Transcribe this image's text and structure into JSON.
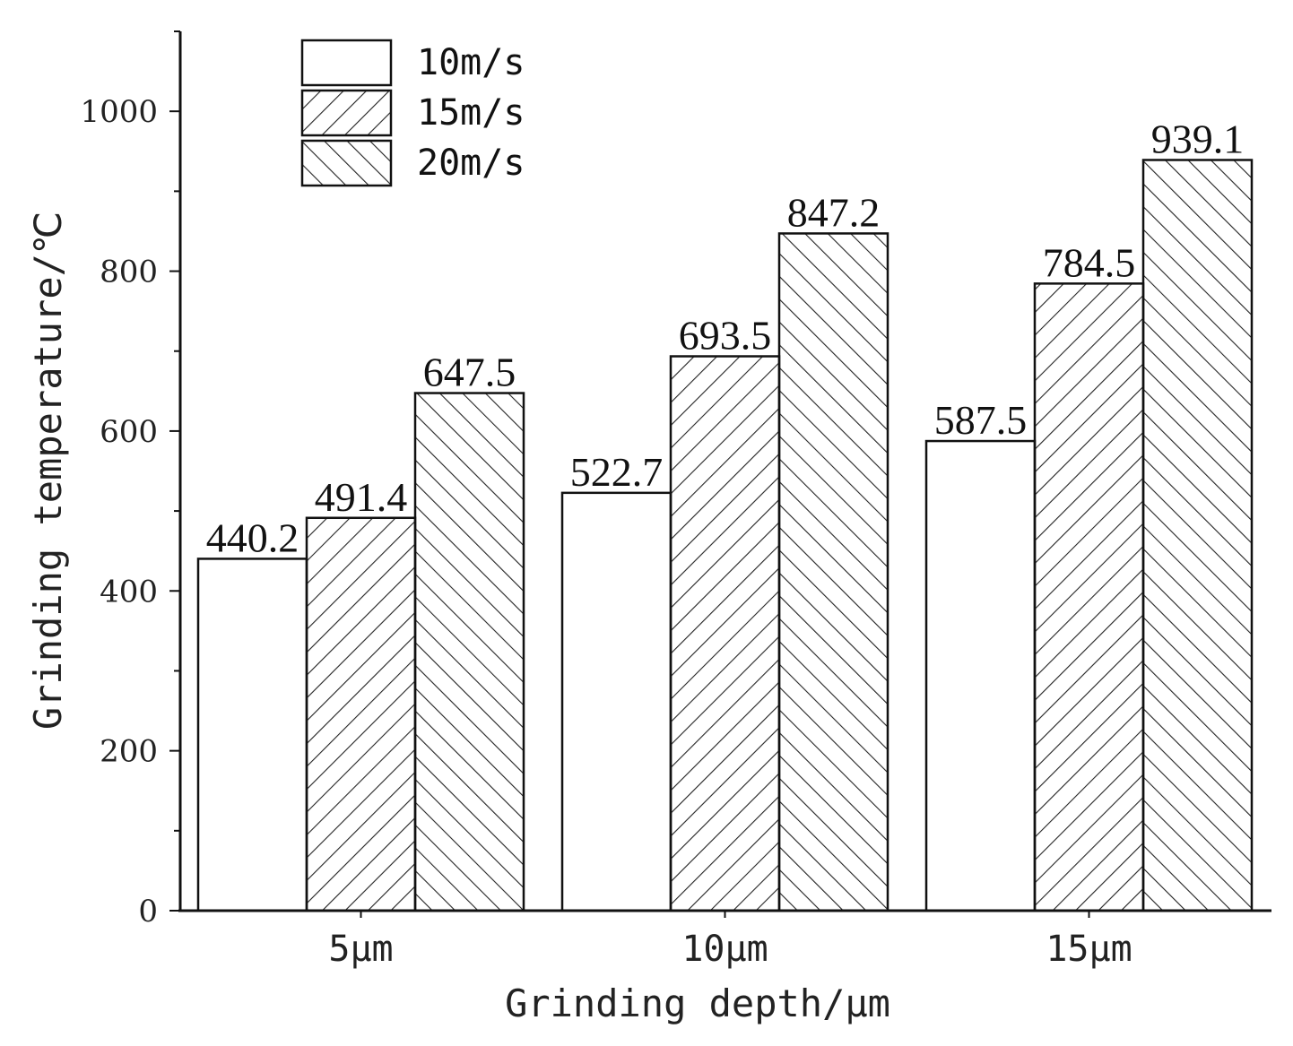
{
  "chart_data": {
    "type": "bar",
    "categories": [
      "5μm",
      "10μm",
      "15μm"
    ],
    "series": [
      {
        "name": "10m/s",
        "values": [
          440.2,
          522.7,
          587.5
        ],
        "pattern": "none"
      },
      {
        "name": "15m/s",
        "values": [
          491.4,
          693.5,
          784.5
        ],
        "pattern": "forward-diagonal"
      },
      {
        "name": "20m/s",
        "values": [
          647.5,
          847.2,
          939.1
        ],
        "pattern": "back-diagonal"
      }
    ],
    "data_labels": [
      [
        "440.2",
        "522.7",
        "587.5"
      ],
      [
        "491.4",
        "693.5",
        "784.5"
      ],
      [
        "647.5",
        "847.2",
        "939.1"
      ]
    ],
    "xlabel": "Grinding depth/μm",
    "ylabel": "Grinding temperature/℃",
    "ylim": [
      0,
      1100
    ],
    "yticks": [
      0,
      200,
      400,
      600,
      800,
      1000
    ],
    "ytick_labels": [
      "0",
      "200",
      "400",
      "600",
      "800",
      "1000"
    ],
    "grid": false,
    "legend_position": "top-left",
    "colors": {
      "stroke": "#111111",
      "fill": "#ffffff",
      "hatch": "#222222"
    }
  }
}
